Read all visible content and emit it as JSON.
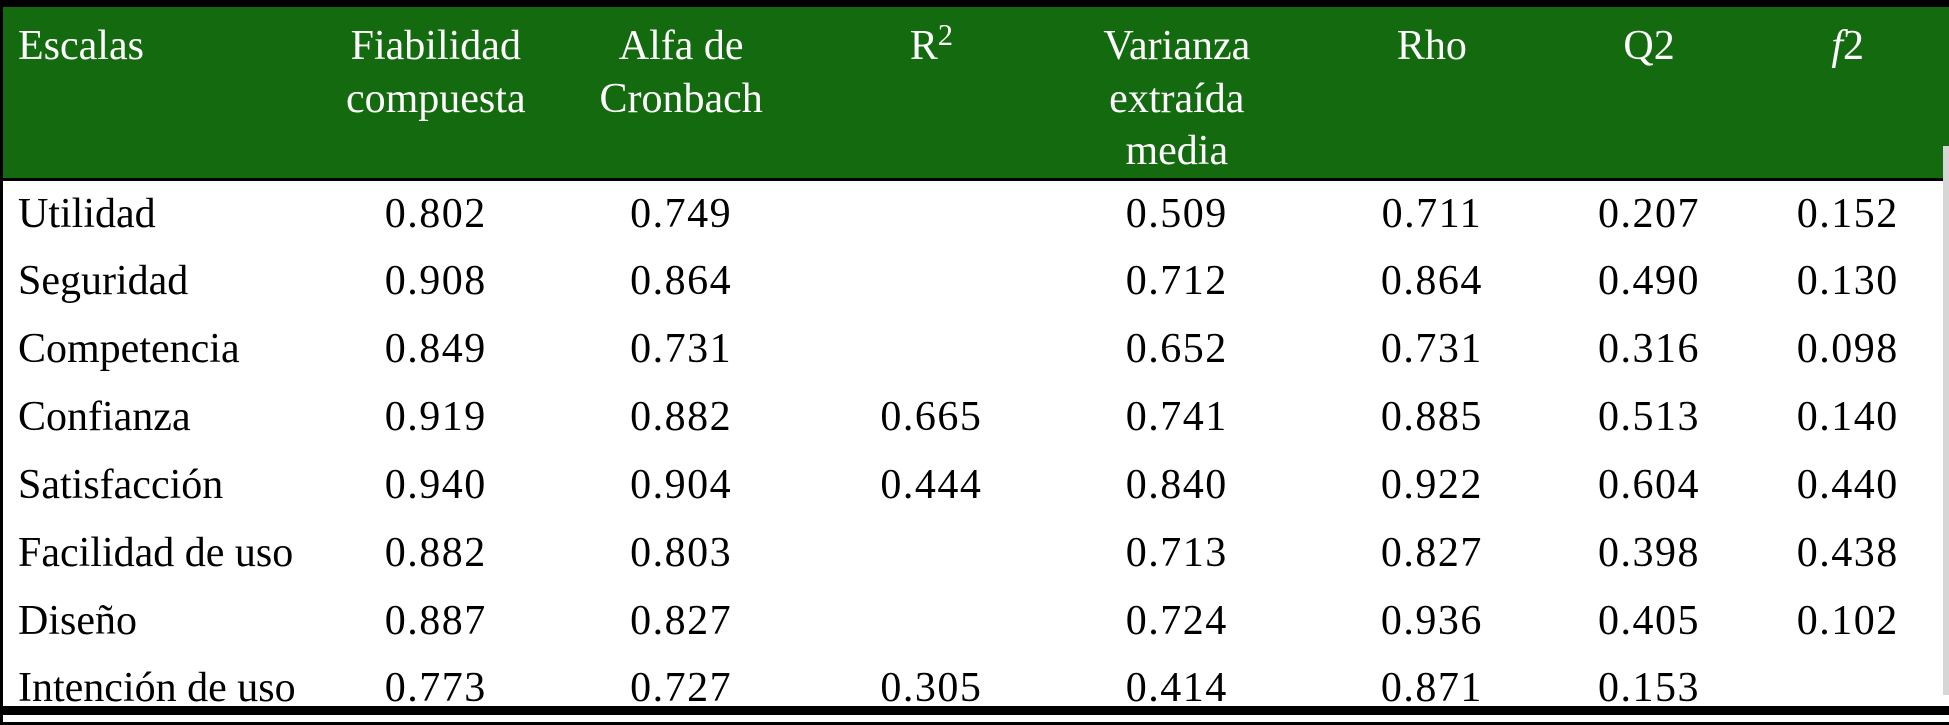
{
  "colors": {
    "header_bg": "#146a0e",
    "header_text": "#ffffff",
    "body_bg": "#ffffff",
    "body_text": "#000000",
    "border": "#000000",
    "edge_artifact": "#d6d6d6"
  },
  "table": {
    "columns": [
      {
        "key": "escalas",
        "label": "Escalas"
      },
      {
        "key": "fiabilidad",
        "label": "Fiabilidad compuesta",
        "line1": "Fiabilidad",
        "line2": "compuesta"
      },
      {
        "key": "alfa",
        "label": "Alfa de Cronbach"
      },
      {
        "key": "r2",
        "label": "R2",
        "base": "R",
        "sup": "2"
      },
      {
        "key": "varianza",
        "label": "Varianza extraída media",
        "line1": "Varianza extraída",
        "line2": "media"
      },
      {
        "key": "rho",
        "label": "Rho"
      },
      {
        "key": "q2",
        "label": "Q2"
      },
      {
        "key": "f2",
        "label": "f2",
        "base": "f",
        "rest": "2"
      }
    ],
    "rows": [
      {
        "name": "Utilidad",
        "values": [
          "0.802",
          "0.749",
          "",
          "0.509",
          "0.711",
          "0.207",
          "0.152"
        ]
      },
      {
        "name": "Seguridad",
        "values": [
          "0.908",
          "0.864",
          "",
          "0.712",
          "0.864",
          "0.490",
          "0.130"
        ]
      },
      {
        "name": "Competencia",
        "values": [
          "0.849",
          "0.731",
          "",
          "0.652",
          "0.731",
          "0.316",
          "0.098"
        ]
      },
      {
        "name": "Confianza",
        "values": [
          "0.919",
          "0.882",
          "0.665",
          "0.741",
          "0.885",
          "0.513",
          "0.140"
        ]
      },
      {
        "name": "Satisfacción",
        "values": [
          "0.940",
          "0.904",
          "0.444",
          "0.840",
          "0.922",
          "0.604",
          "0.440"
        ]
      },
      {
        "name": "Facilidad de uso",
        "values": [
          "0.882",
          "0.803",
          "",
          "0.713",
          "0.827",
          "0.398",
          "0.438"
        ]
      },
      {
        "name": "Diseño",
        "values": [
          "0.887",
          "0.827",
          "",
          "0.724",
          "0.936",
          "0.405",
          "0.102"
        ]
      },
      {
        "name": "Intención de uso",
        "values": [
          "0.773",
          "0.727",
          "0.305",
          "0.414",
          "0.871",
          "0.153",
          ""
        ]
      }
    ]
  }
}
